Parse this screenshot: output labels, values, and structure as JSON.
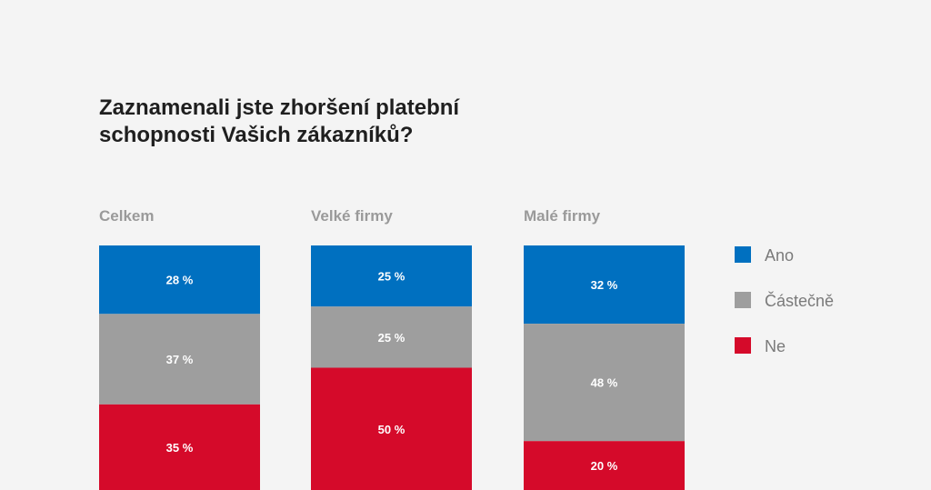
{
  "title": "Zaznamenali jste zhoršení platební\nschopnosti Vašich zákazníků?",
  "chart_data": {
    "type": "bar",
    "stacked": true,
    "title": "Zaznamenali jste zhoršení platební schopnosti Vašich zákazníků?",
    "categories": [
      "Celkem",
      "Velké firmy",
      "Malé firmy"
    ],
    "series": [
      {
        "name": "Ano",
        "values": [
          28,
          25,
          32
        ],
        "color": "#0070c0"
      },
      {
        "name": "Částečně",
        "values": [
          37,
          25,
          48
        ],
        "color": "#9e9e9e"
      },
      {
        "name": "Ne",
        "values": [
          35,
          50,
          20
        ],
        "color": "#d50a2a"
      }
    ],
    "value_labels": [
      [
        "28 %",
        "25 %",
        "32 %"
      ],
      [
        "37 %",
        "25 %",
        "48 %"
      ],
      [
        "35 %",
        "50 %",
        "20 %"
      ]
    ],
    "ylim": [
      0,
      100
    ],
    "legend_position": "right"
  }
}
